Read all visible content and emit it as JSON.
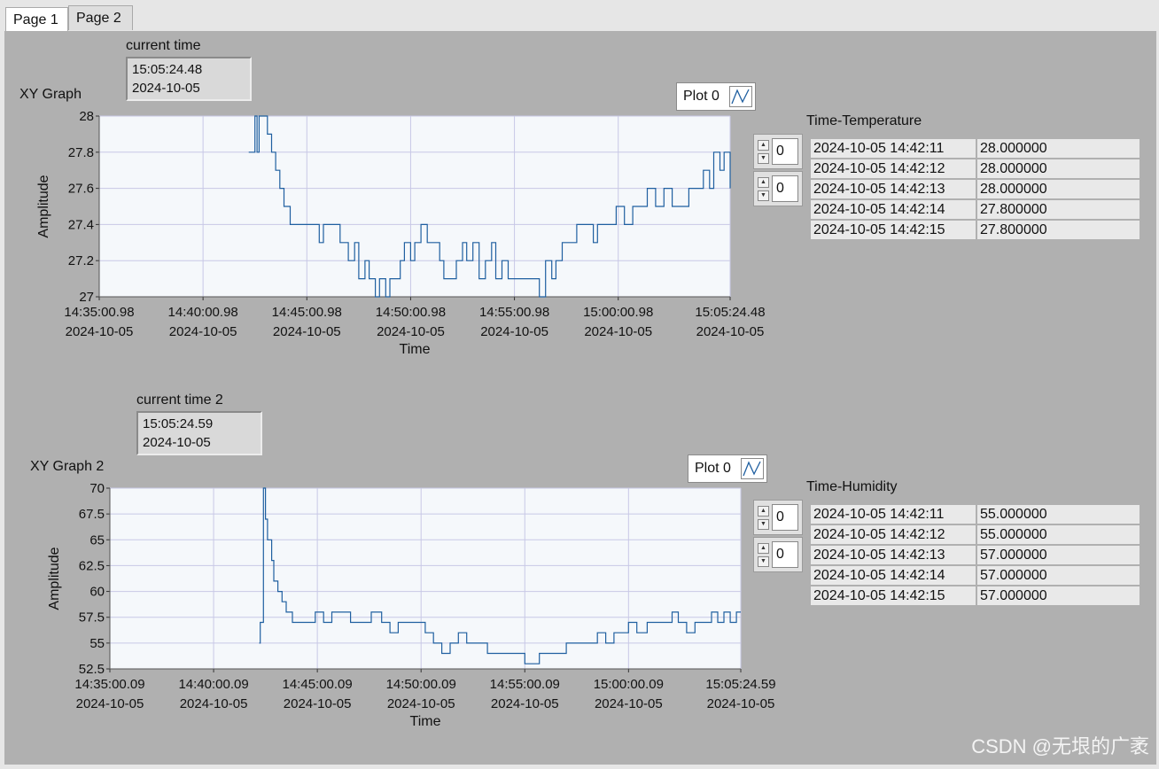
{
  "tabs": [
    {
      "label": "Page 1"
    },
    {
      "label": "Page 2"
    }
  ],
  "section1": {
    "time_label": "current time",
    "time_value_line1": "15:05:24.48",
    "time_value_line2": "2024-10-05",
    "graph_title": "XY Graph",
    "legend_label": "Plot 0",
    "table_title": "Time-Temperature",
    "index1": "0",
    "index2": "0",
    "rows": [
      [
        "2024-10-05 14:42:11",
        "28.000000"
      ],
      [
        "2024-10-05 14:42:12",
        "28.000000"
      ],
      [
        "2024-10-05 14:42:13",
        "28.000000"
      ],
      [
        "2024-10-05 14:42:14",
        "27.800000"
      ],
      [
        "2024-10-05 14:42:15",
        "27.800000"
      ]
    ]
  },
  "section2": {
    "time_label": "current time 2",
    "time_value_line1": "15:05:24.59",
    "time_value_line2": "2024-10-05",
    "graph_title": "XY Graph 2",
    "legend_label": "Plot 0",
    "table_title": "Time-Humidity",
    "index1": "0",
    "index2": "0",
    "rows": [
      [
        "2024-10-05 14:42:11",
        "55.000000"
      ],
      [
        "2024-10-05 14:42:12",
        "55.000000"
      ],
      [
        "2024-10-05 14:42:13",
        "57.000000"
      ],
      [
        "2024-10-05 14:42:14",
        "57.000000"
      ],
      [
        "2024-10-05 14:42:15",
        "57.000000"
      ]
    ]
  },
  "chart_data": [
    {
      "type": "line",
      "title": "XY Graph",
      "xlabel": "Time",
      "ylabel": "Amplitude",
      "ylim": [
        27,
        28
      ],
      "xlim_minutes": [
        0,
        30.39
      ],
      "x_ticks": [
        {
          "t": 0,
          "l1": "14:35:00.98",
          "l2": "2024-10-05"
        },
        {
          "t": 5,
          "l1": "14:40:00.98",
          "l2": "2024-10-05"
        },
        {
          "t": 10,
          "l1": "14:45:00.98",
          "l2": "2024-10-05"
        },
        {
          "t": 15,
          "l1": "14:50:00.98",
          "l2": "2024-10-05"
        },
        {
          "t": 20,
          "l1": "14:55:00.98",
          "l2": "2024-10-05"
        },
        {
          "t": 25,
          "l1": "15:00:00.98",
          "l2": "2024-10-05"
        },
        {
          "t": 30.39,
          "l1": "15:05:24.48",
          "l2": "2024-10-05"
        }
      ],
      "y_ticks": [
        "27",
        "27.2",
        "27.4",
        "27.6",
        "27.8",
        "28"
      ],
      "y_tick_values": [
        27,
        27.2,
        27.4,
        27.6,
        27.8,
        28
      ],
      "grid": true,
      "series": [
        {
          "name": "Plot 0",
          "color": "#1f5fa0",
          "points": [
            [
              7.2,
              27.8
            ],
            [
              7.5,
              28
            ],
            [
              7.6,
              27.8
            ],
            [
              7.7,
              28
            ],
            [
              8.0,
              28
            ],
            [
              8.1,
              27.9
            ],
            [
              8.3,
              27.8
            ],
            [
              8.5,
              27.7
            ],
            [
              8.7,
              27.6
            ],
            [
              8.9,
              27.5
            ],
            [
              9.0,
              27.5
            ],
            [
              9.2,
              27.4
            ],
            [
              10.0,
              27.4
            ],
            [
              10.5,
              27.4
            ],
            [
              10.6,
              27.3
            ],
            [
              10.8,
              27.4
            ],
            [
              11.4,
              27.4
            ],
            [
              11.6,
              27.3
            ],
            [
              11.8,
              27.3
            ],
            [
              12.0,
              27.2
            ],
            [
              12.3,
              27.3
            ],
            [
              12.5,
              27.1
            ],
            [
              12.8,
              27.2
            ],
            [
              13.0,
              27.1
            ],
            [
              13.3,
              27.0
            ],
            [
              13.5,
              27.1
            ],
            [
              13.8,
              27.0
            ],
            [
              14.0,
              27.1
            ],
            [
              14.3,
              27.1
            ],
            [
              14.5,
              27.2
            ],
            [
              14.7,
              27.3
            ],
            [
              15.0,
              27.2
            ],
            [
              15.2,
              27.3
            ],
            [
              15.5,
              27.4
            ],
            [
              15.8,
              27.3
            ],
            [
              16.1,
              27.3
            ],
            [
              16.4,
              27.2
            ],
            [
              16.6,
              27.1
            ],
            [
              16.9,
              27.1
            ],
            [
              17.2,
              27.2
            ],
            [
              17.5,
              27.3
            ],
            [
              17.7,
              27.2
            ],
            [
              18.0,
              27.3
            ],
            [
              18.3,
              27.1
            ],
            [
              18.6,
              27.2
            ],
            [
              18.9,
              27.3
            ],
            [
              19.1,
              27.1
            ],
            [
              19.4,
              27.2
            ],
            [
              19.7,
              27.1
            ],
            [
              20.0,
              27.1
            ],
            [
              20.4,
              27.1
            ],
            [
              20.8,
              27.1
            ],
            [
              21.2,
              27.0
            ],
            [
              21.5,
              27.2
            ],
            [
              21.8,
              27.1
            ],
            [
              22.0,
              27.2
            ],
            [
              22.3,
              27.3
            ],
            [
              22.6,
              27.3
            ],
            [
              23.0,
              27.4
            ],
            [
              23.4,
              27.4
            ],
            [
              23.8,
              27.3
            ],
            [
              24.0,
              27.4
            ],
            [
              24.3,
              27.4
            ],
            [
              24.6,
              27.4
            ],
            [
              24.9,
              27.5
            ],
            [
              25.3,
              27.4
            ],
            [
              25.7,
              27.5
            ],
            [
              26.0,
              27.5
            ],
            [
              26.4,
              27.6
            ],
            [
              26.8,
              27.5
            ],
            [
              27.2,
              27.6
            ],
            [
              27.6,
              27.5
            ],
            [
              28.0,
              27.5
            ],
            [
              28.4,
              27.6
            ],
            [
              28.8,
              27.6
            ],
            [
              29.1,
              27.7
            ],
            [
              29.4,
              27.6
            ],
            [
              29.6,
              27.8
            ],
            [
              29.9,
              27.7
            ],
            [
              30.1,
              27.8
            ],
            [
              30.39,
              27.6
            ]
          ]
        }
      ]
    },
    {
      "type": "line",
      "title": "XY Graph 2",
      "xlabel": "Time",
      "ylabel": "Amplitude",
      "ylim": [
        52.5,
        70
      ],
      "xlim_minutes": [
        0,
        30.41
      ],
      "x_ticks": [
        {
          "t": 0,
          "l1": "14:35:00.09",
          "l2": "2024-10-05"
        },
        {
          "t": 5,
          "l1": "14:40:00.09",
          "l2": "2024-10-05"
        },
        {
          "t": 10,
          "l1": "14:45:00.09",
          "l2": "2024-10-05"
        },
        {
          "t": 15,
          "l1": "14:50:00.09",
          "l2": "2024-10-05"
        },
        {
          "t": 20,
          "l1": "14:55:00.09",
          "l2": "2024-10-05"
        },
        {
          "t": 25,
          "l1": "15:00:00.09",
          "l2": "2024-10-05"
        },
        {
          "t": 30.41,
          "l1": "15:05:24.59",
          "l2": "2024-10-05"
        }
      ],
      "y_ticks": [
        "52.5",
        "55",
        "57.5",
        "60",
        "62.5",
        "65",
        "67.5",
        "70"
      ],
      "y_tick_values": [
        52.5,
        55,
        57.5,
        60,
        62.5,
        65,
        67.5,
        70
      ],
      "grid": true,
      "series": [
        {
          "name": "Plot 0",
          "color": "#1f5fa0",
          "points": [
            [
              7.2,
              55
            ],
            [
              7.25,
              57
            ],
            [
              7.4,
              70
            ],
            [
              7.5,
              67
            ],
            [
              7.6,
              65
            ],
            [
              7.8,
              63
            ],
            [
              7.9,
              61
            ],
            [
              8.1,
              60
            ],
            [
              8.3,
              59
            ],
            [
              8.5,
              58
            ],
            [
              8.8,
              57
            ],
            [
              9.2,
              57
            ],
            [
              9.6,
              57
            ],
            [
              9.9,
              58
            ],
            [
              10.3,
              57
            ],
            [
              10.7,
              58
            ],
            [
              11.2,
              58
            ],
            [
              11.6,
              57
            ],
            [
              12.1,
              57
            ],
            [
              12.6,
              58
            ],
            [
              13.1,
              57
            ],
            [
              13.5,
              56
            ],
            [
              13.9,
              57
            ],
            [
              14.4,
              57
            ],
            [
              14.9,
              57
            ],
            [
              15.2,
              56
            ],
            [
              15.6,
              55
            ],
            [
              16.0,
              54
            ],
            [
              16.4,
              55
            ],
            [
              16.8,
              56
            ],
            [
              17.2,
              55
            ],
            [
              17.7,
              55
            ],
            [
              18.2,
              54
            ],
            [
              18.7,
              54
            ],
            [
              19.3,
              54
            ],
            [
              19.8,
              54
            ],
            [
              20.0,
              53
            ],
            [
              20.4,
              53
            ],
            [
              20.7,
              54
            ],
            [
              21.2,
              54
            ],
            [
              21.6,
              54
            ],
            [
              22.0,
              55
            ],
            [
              22.5,
              55
            ],
            [
              23.0,
              55
            ],
            [
              23.5,
              56
            ],
            [
              23.9,
              55
            ],
            [
              24.3,
              56
            ],
            [
              24.7,
              56
            ],
            [
              25.0,
              57
            ],
            [
              25.4,
              56
            ],
            [
              25.9,
              57
            ],
            [
              26.3,
              57
            ],
            [
              26.8,
              57
            ],
            [
              27.1,
              58
            ],
            [
              27.4,
              57
            ],
            [
              27.8,
              56
            ],
            [
              28.2,
              57
            ],
            [
              28.6,
              57
            ],
            [
              29.0,
              58
            ],
            [
              29.3,
              57
            ],
            [
              29.6,
              58
            ],
            [
              29.9,
              57
            ],
            [
              30.2,
              58
            ],
            [
              30.41,
              58
            ]
          ]
        }
      ]
    }
  ],
  "watermark": "CSDN @无垠的广袤"
}
